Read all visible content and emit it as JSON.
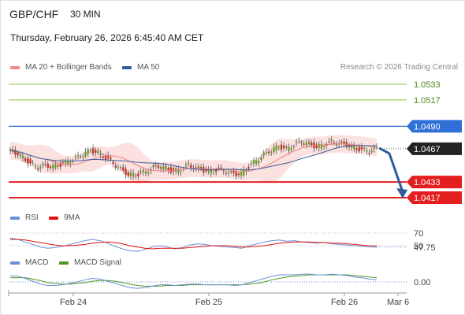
{
  "header": {
    "symbol": "GBP/CHF",
    "interval": "30 MIN",
    "datetime": "Thursday, February 26, 2026 6:45:40 AM CET"
  },
  "legends": {
    "price": [
      {
        "label": "MA 20 + Bollinger Bands",
        "color": "#f28b8b"
      },
      {
        "label": "MA 50",
        "color": "#2e5d9a"
      }
    ],
    "rsi": [
      {
        "label": "RSI",
        "color": "#6b8fd6"
      },
      {
        "label": "9MA",
        "color": "#e01010"
      }
    ],
    "macd": [
      {
        "label": "MACD",
        "color": "#6b8fd6"
      },
      {
        "label": "MACD Signal",
        "color": "#4c9a1c"
      }
    ],
    "credit": "Research © 2026 Trading Central"
  },
  "chart_data": {
    "type": "candlestick",
    "x_ticks": [
      "Feb 24",
      "Feb 25",
      "Feb 26",
      "Mar 6"
    ],
    "levels": [
      {
        "label": "1.0533",
        "style": "resistance",
        "color": "#8cc63f"
      },
      {
        "label": "1.0517",
        "style": "resistance",
        "color": "#8cc63f"
      },
      {
        "label": "1.0490",
        "style": "pivot",
        "color": "#2f6fd6"
      },
      {
        "label": "1.0467",
        "style": "last",
        "color": "#222222"
      },
      {
        "label": "1.0433",
        "style": "support",
        "color": "#e41e1e"
      },
      {
        "label": "1.0417",
        "style": "support",
        "color": "#e41e1e"
      }
    ],
    "forecast": {
      "from": 1.0467,
      "to": 1.0417,
      "direction": "down",
      "color": "#2e5d9a"
    },
    "price_series": [
      1.0465,
      1.0463,
      1.0458,
      1.0452,
      1.0448,
      1.045,
      1.0449,
      1.0451,
      1.0454,
      1.0457,
      1.0462,
      1.0465,
      1.0463,
      1.0458,
      1.0452,
      1.0446,
      1.0441,
      1.044,
      1.0443,
      1.0447,
      1.0449,
      1.0447,
      1.0444,
      1.0446,
      1.045,
      1.0448,
      1.0445,
      1.0444,
      1.0446,
      1.0444,
      1.0441,
      1.0442,
      1.0449,
      1.0455,
      1.0461,
      1.0466,
      1.0469,
      1.0467,
      1.0471,
      1.0474,
      1.0472,
      1.0469,
      1.0471,
      1.0474,
      1.0473,
      1.0471,
      1.0468,
      1.0466,
      1.0465,
      1.0467
    ],
    "rsi": {
      "ticks": [
        "70",
        "50"
      ],
      "value_label": "47.75",
      "rsi": [
        62,
        60,
        56,
        52,
        48,
        46,
        47,
        49,
        52,
        55,
        58,
        60,
        58,
        54,
        49,
        45,
        42,
        41,
        44,
        48,
        50,
        48,
        45,
        47,
        51,
        53,
        52,
        50,
        49,
        48,
        47,
        46,
        50,
        53,
        56,
        58,
        59,
        57,
        58,
        56,
        55,
        54,
        55,
        53,
        52,
        51,
        50,
        49,
        48,
        47.75
      ],
      "ma9": [
        60,
        60,
        59,
        57,
        55,
        53,
        51,
        50,
        50,
        51,
        52,
        54,
        55,
        56,
        55,
        53,
        50,
        48,
        46,
        45,
        46,
        46,
        46,
        46,
        47,
        48,
        49,
        50,
        50,
        50,
        49,
        48,
        48,
        49,
        50,
        52,
        54,
        55,
        56,
        56,
        56,
        55,
        55,
        54,
        54,
        53,
        52,
        51,
        50,
        49.5
      ]
    },
    "macd": {
      "ticks": [
        "0.00"
      ],
      "macd": [
        0.0009,
        0.0008,
        0.0005,
        0.0001,
        -0.0003,
        -0.0005,
        -0.0005,
        -0.0004,
        -0.0002,
        0.0,
        0.0003,
        0.0005,
        0.0004,
        0.0001,
        -0.0002,
        -0.0005,
        -0.0008,
        -0.0009,
        -0.0008,
        -0.0006,
        -0.0004,
        -0.0004,
        -0.0005,
        -0.0004,
        -0.0003,
        -0.0003,
        -0.0004,
        -0.0004,
        -0.0004,
        -0.0004,
        -0.0005,
        -0.0004,
        -0.0001,
        0.0002,
        0.0005,
        0.0008,
        0.001,
        0.001,
        0.001,
        0.0011,
        0.0011,
        0.001,
        0.001,
        0.0011,
        0.001,
        0.0009,
        0.0007,
        0.0006,
        0.0004,
        0.0003
      ],
      "signal": [
        0.0006,
        0.0006,
        0.0006,
        0.0004,
        0.0002,
        -0.0001,
        -0.0002,
        -0.0003,
        -0.0003,
        -0.0002,
        -0.0001,
        0.0001,
        0.0002,
        0.0002,
        0.0001,
        -0.0001,
        -0.0003,
        -0.0005,
        -0.0006,
        -0.0006,
        -0.0006,
        -0.0005,
        -0.0005,
        -0.0005,
        -0.0004,
        -0.0004,
        -0.0004,
        -0.0004,
        -0.0004,
        -0.0004,
        -0.0004,
        -0.0004,
        -0.0003,
        -0.0002,
        0.0,
        0.0003,
        0.0005,
        0.0007,
        0.0008,
        0.0009,
        0.001,
        0.001,
        0.001,
        0.001,
        0.001,
        0.001,
        0.0009,
        0.0008,
        0.0007,
        0.0006
      ]
    }
  }
}
